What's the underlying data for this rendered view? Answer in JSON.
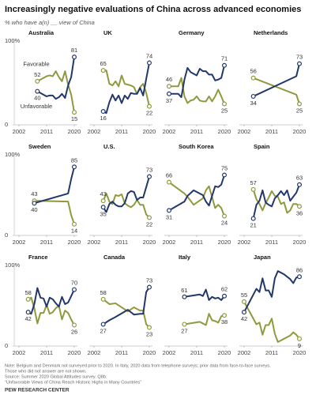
{
  "header": {
    "title": "Increasingly negative evaluations of China across advanced economies",
    "subtitle": "% who have a(n) __ view of China"
  },
  "chart_data": [
    {
      "type": "line",
      "title": "Australia",
      "x": [
        2008,
        2011,
        2012,
        2013,
        2014,
        2015,
        2016,
        2017,
        2018,
        2019,
        2020
      ],
      "series": [
        {
          "name": "Favorable",
          "color": "#8f9a3e",
          "values": [
            52,
            58,
            59,
            58,
            64,
            57,
            52,
            64,
            48,
            36,
            15
          ]
        },
        {
          "name": "Unfavorable",
          "color": "#22386b",
          "values": [
            40,
            34,
            35,
            35,
            31,
            33,
            37,
            32,
            47,
            57,
            81
          ]
        }
      ],
      "legend": true,
      "xlim": [
        2002,
        2020
      ],
      "ylim": [
        0,
        100
      ],
      "xticks": [
        2002,
        2011,
        2020
      ],
      "yticks": [
        0,
        {
          "value": 100,
          "label": "100%"
        }
      ]
    },
    {
      "type": "line",
      "title": "UK",
      "x": [
        2005,
        2006,
        2007,
        2008,
        2009,
        2010,
        2011,
        2012,
        2013,
        2014,
        2015,
        2016,
        2017,
        2018,
        2019,
        2020
      ],
      "series": [
        {
          "color": "#8f9a3e",
          "values": [
            65,
            65,
            49,
            47,
            52,
            46,
            59,
            49,
            48,
            47,
            45,
            37,
            45,
            49,
            38,
            22
          ]
        },
        {
          "color": "#22386b",
          "values": [
            16,
            14,
            27,
            36,
            29,
            35,
            26,
            35,
            31,
            38,
            37,
            37,
            44,
            35,
            55,
            74
          ]
        }
      ],
      "xlim": [
        2002,
        2020
      ],
      "ylim": [
        0,
        100
      ],
      "xticks": [
        2002,
        2011,
        2020
      ]
    },
    {
      "type": "line",
      "title": "Germany",
      "x": [
        2002,
        2005,
        2006,
        2007,
        2008,
        2009,
        2010,
        2011,
        2012,
        2013,
        2014,
        2015,
        2016,
        2017,
        2018,
        2019,
        2020
      ],
      "series": [
        {
          "color": "#8f9a3e",
          "values": [
            46,
            46,
            56,
            34,
            26,
            29,
            30,
            34,
            29,
            28,
            28,
            34,
            28,
            34,
            42,
            34,
            25
          ]
        },
        {
          "color": "#22386b",
          "values": [
            37,
            37,
            33,
            54,
            68,
            63,
            61,
            59,
            67,
            64,
            64,
            60,
            60,
            53,
            54,
            56,
            71
          ]
        }
      ],
      "xlim": [
        2002,
        2020
      ],
      "ylim": [
        0,
        100
      ],
      "xticks": [
        2002,
        2011,
        2020
      ]
    },
    {
      "type": "line",
      "title": "Netherlands",
      "x": [
        2005,
        2019,
        2020
      ],
      "series": [
        {
          "color": "#8f9a3e",
          "values": [
            56,
            36,
            25
          ]
        },
        {
          "color": "#22386b",
          "values": [
            34,
            58,
            73
          ]
        }
      ],
      "xlim": [
        2002,
        2020
      ],
      "ylim": [
        0,
        100
      ],
      "xticks": [
        2002,
        2011,
        2020
      ]
    },
    {
      "type": "line",
      "title": "Sweden",
      "x": [
        2007,
        2018,
        2019,
        2020
      ],
      "series": [
        {
          "color": "#8f9a3e",
          "values": [
            43,
            42,
            25,
            14
          ]
        },
        {
          "color": "#22386b",
          "values": [
            40,
            52,
            70,
            85
          ]
        }
      ],
      "xlim": [
        2002,
        2020
      ],
      "ylim": [
        0,
        100
      ],
      "xticks": [
        2002,
        2011,
        2020
      ],
      "yticks": [
        0,
        {
          "value": 100,
          "label": "100%"
        }
      ]
    },
    {
      "type": "line",
      "title": "U.S.",
      "x": [
        2005,
        2006,
        2007,
        2008,
        2009,
        2010,
        2011,
        2012,
        2013,
        2014,
        2015,
        2016,
        2017,
        2018,
        2019,
        2020
      ],
      "series": [
        {
          "color": "#8f9a3e",
          "values": [
            43,
            52,
            42,
            39,
            50,
            49,
            51,
            40,
            37,
            35,
            38,
            44,
            38,
            38,
            26,
            22
          ]
        },
        {
          "color": "#22386b",
          "values": [
            35,
            29,
            39,
            42,
            38,
            36,
            36,
            40,
            52,
            55,
            54,
            44,
            47,
            47,
            60,
            73
          ]
        }
      ],
      "xlim": [
        2002,
        2020
      ],
      "ylim": [
        0,
        100
      ],
      "xticks": [
        2002,
        2011,
        2020
      ]
    },
    {
      "type": "line",
      "title": "South Korea",
      "x": [
        2002,
        2007,
        2008,
        2010,
        2013,
        2014,
        2015,
        2017,
        2018,
        2019,
        2020
      ],
      "series": [
        {
          "color": "#8f9a3e",
          "values": [
            66,
            52,
            48,
            38,
            46,
            56,
            61,
            34,
            38,
            34,
            24
          ]
        },
        {
          "color": "#22386b",
          "values": [
            31,
            42,
            49,
            56,
            50,
            42,
            37,
            61,
            60,
            63,
            75
          ]
        }
      ],
      "xlim": [
        2002,
        2020
      ],
      "ylim": [
        0,
        100
      ],
      "xticks": [
        2002,
        2011,
        2020
      ]
    },
    {
      "type": "line",
      "title": "Spain",
      "x": [
        2005,
        2006,
        2007,
        2008,
        2009,
        2010,
        2011,
        2012,
        2013,
        2014,
        2015,
        2016,
        2017,
        2018,
        2019,
        2020
      ],
      "series": [
        {
          "color": "#8f9a3e",
          "values": [
            57,
            45,
            39,
            31,
            40,
            47,
            55,
            49,
            48,
            39,
            41,
            28,
            31,
            39,
            39,
            36
          ]
        },
        {
          "color": "#22386b",
          "values": [
            21,
            38,
            43,
            56,
            41,
            38,
            36,
            46,
            50,
            55,
            50,
            56,
            43,
            48,
            53,
            63
          ]
        }
      ],
      "xlim": [
        2002,
        2020
      ],
      "ylim": [
        0,
        100
      ],
      "xticks": [
        2002,
        2011,
        2020
      ]
    },
    {
      "type": "line",
      "title": "France",
      "x": [
        2005,
        2006,
        2007,
        2008,
        2009,
        2010,
        2011,
        2012,
        2013,
        2014,
        2015,
        2016,
        2017,
        2018,
        2019,
        2020
      ],
      "series": [
        {
          "color": "#8f9a3e",
          "values": [
            58,
            60,
            47,
            28,
            41,
            41,
            51,
            40,
            42,
            47,
            50,
            33,
            44,
            41,
            33,
            26
          ]
        },
        {
          "color": "#22386b",
          "values": [
            42,
            40,
            52,
            72,
            60,
            59,
            49,
            60,
            58,
            53,
            49,
            61,
            52,
            54,
            62,
            70
          ]
        }
      ],
      "xlim": [
        2002,
        2020
      ],
      "ylim": [
        0,
        100
      ],
      "xticks": [
        2002,
        2011,
        2020
      ],
      "yticks": [
        0,
        {
          "value": 100,
          "label": "100%"
        }
      ]
    },
    {
      "type": "line",
      "title": "Canada",
      "x": [
        2005,
        2007,
        2009,
        2013,
        2015,
        2017,
        2018,
        2019,
        2020
      ],
      "series": [
        {
          "color": "#8f9a3e",
          "values": [
            58,
            52,
            53,
            43,
            48,
            44,
            44,
            27,
            23
          ]
        },
        {
          "color": "#22386b",
          "values": [
            27,
            32,
            36,
            45,
            39,
            40,
            40,
            67,
            73
          ]
        }
      ],
      "xlim": [
        2002,
        2020
      ],
      "ylim": [
        0,
        100
      ],
      "xticks": [
        2002,
        2011,
        2020
      ]
    },
    {
      "type": "line",
      "title": "Italy",
      "x": [
        2007,
        2012,
        2013,
        2014,
        2015,
        2016,
        2017,
        2018,
        2019,
        2020
      ],
      "series": [
        {
          "color": "#8f9a3e",
          "values": [
            27,
            30,
            28,
            26,
            40,
            32,
            31,
            29,
            37,
            38
          ]
        },
        {
          "color": "#22386b",
          "values": [
            61,
            64,
            62,
            70,
            57,
            61,
            59,
            60,
            57,
            62
          ]
        }
      ],
      "xlim": [
        2002,
        2020
      ],
      "ylim": [
        0,
        100
      ],
      "xticks": [
        2002,
        2011,
        2020
      ]
    },
    {
      "type": "line",
      "title": "Japan",
      "x": [
        2002,
        2006,
        2007,
        2008,
        2009,
        2010,
        2011,
        2012,
        2013,
        2014,
        2015,
        2016,
        2017,
        2018,
        2019,
        2020
      ],
      "series": [
        {
          "color": "#8f9a3e",
          "values": [
            55,
            27,
            29,
            14,
            26,
            26,
            34,
            15,
            5,
            7,
            9,
            11,
            13,
            17,
            14,
            9
          ]
        },
        {
          "color": "#22386b",
          "values": [
            42,
            71,
            67,
            84,
            69,
            69,
            61,
            84,
            93,
            91,
            89,
            86,
            83,
            78,
            85,
            86
          ]
        }
      ],
      "xlim": [
        2002,
        2020
      ],
      "ylim": [
        0,
        100
      ],
      "xticks": [
        2002,
        2011,
        2020
      ]
    }
  ],
  "footer": {
    "notes": [
      "Note: Belgium and Denmark not surveyed prior to 2020. In Italy, 2020 data from telephone surveys; prior data from face-to-face surveys.",
      "Those who did not answer are not shown.",
      "Source: Summer 2020 Global Attitudes survey. Q8b.",
      "“Unfavorable Views of China Reach Historic Highs in Many Countries”"
    ],
    "org": "PEW RESEARCH CENTER"
  }
}
